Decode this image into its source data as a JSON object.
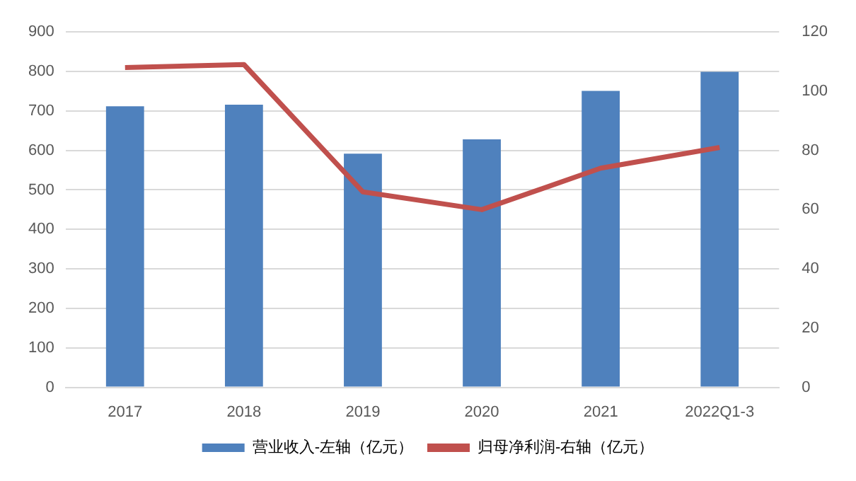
{
  "chart_data": {
    "type": "bar",
    "categories": [
      "2017",
      "2018",
      "2019",
      "2020",
      "2021",
      "2022Q1-3"
    ],
    "series": [
      {
        "name": "营业收入-左轴（亿元）",
        "color": "#4f81bd",
        "values": [
          712,
          716,
          592,
          628,
          751,
          799
        ]
      },
      {
        "name": "归母净利润-右轴（亿元）",
        "type": "line",
        "axis": "y2",
        "color": "#c0504d",
        "values": [
          108,
          109,
          66,
          60,
          74,
          81
        ]
      }
    ],
    "ylim": [
      0,
      900
    ],
    "yticks": [
      0,
      100,
      200,
      300,
      400,
      500,
      600,
      700,
      800,
      900
    ],
    "y2lim": [
      0,
      120
    ],
    "y2ticks": [
      0,
      20,
      40,
      60,
      80,
      100,
      120
    ],
    "grid": "y",
    "legend": "bottom",
    "marker": "none"
  }
}
